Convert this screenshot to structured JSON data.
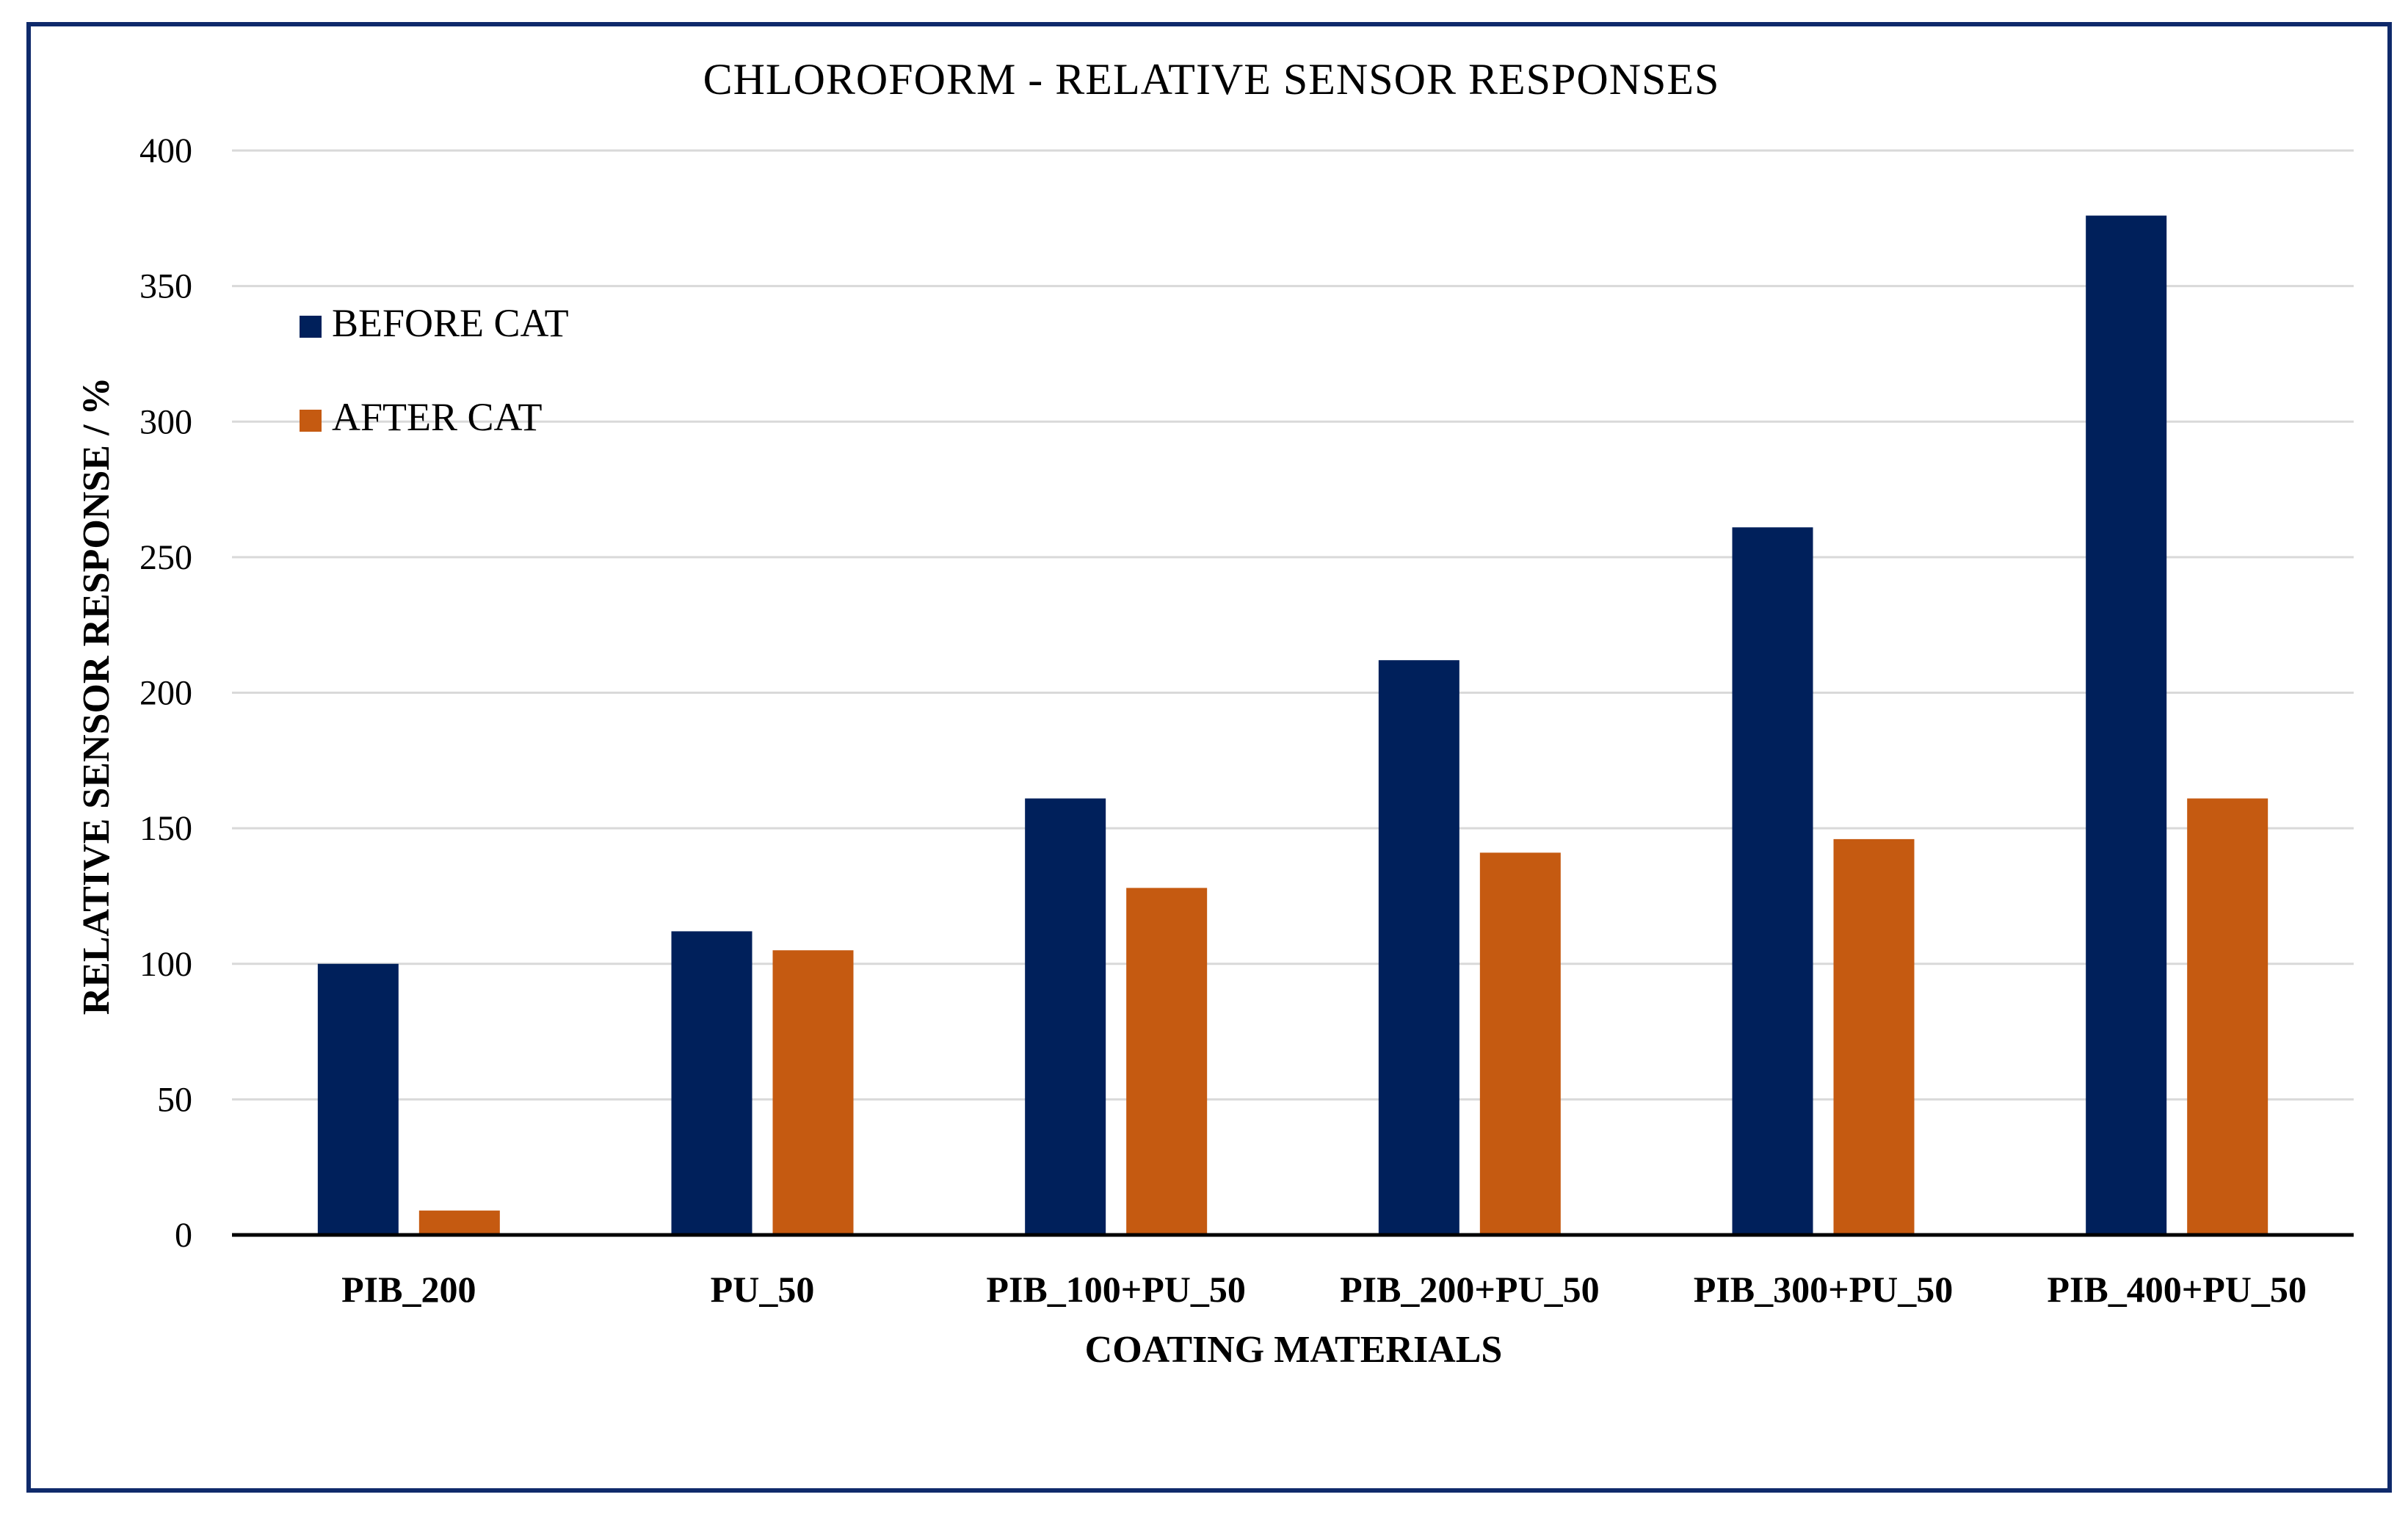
{
  "chart_data": {
    "type": "bar",
    "title": "CHLOROFORM - RELATIVE SENSOR RESPONSES",
    "xlabel": "COATING MATERIALS",
    "ylabel": "RELATIVE SENSOR RESPONSE / %",
    "categories": [
      "PIB_200",
      "PU_50",
      "PIB_100+PU_50",
      "PIB_200+PU_50",
      "PIB_300+PU_50",
      "PIB_400+PU_50"
    ],
    "series": [
      {
        "name": "BEFORE CAT",
        "color": "#00205b",
        "values": [
          100,
          112,
          161,
          212,
          261,
          376
        ]
      },
      {
        "name": "AFTER CAT",
        "color": "#c55a11",
        "values": [
          9,
          105,
          128,
          141,
          146,
          161
        ]
      }
    ],
    "ylim": [
      0,
      400
    ],
    "yticks": [
      0,
      50,
      100,
      150,
      200,
      250,
      300,
      350,
      400
    ],
    "grid": true,
    "legend_position": "top-left"
  }
}
